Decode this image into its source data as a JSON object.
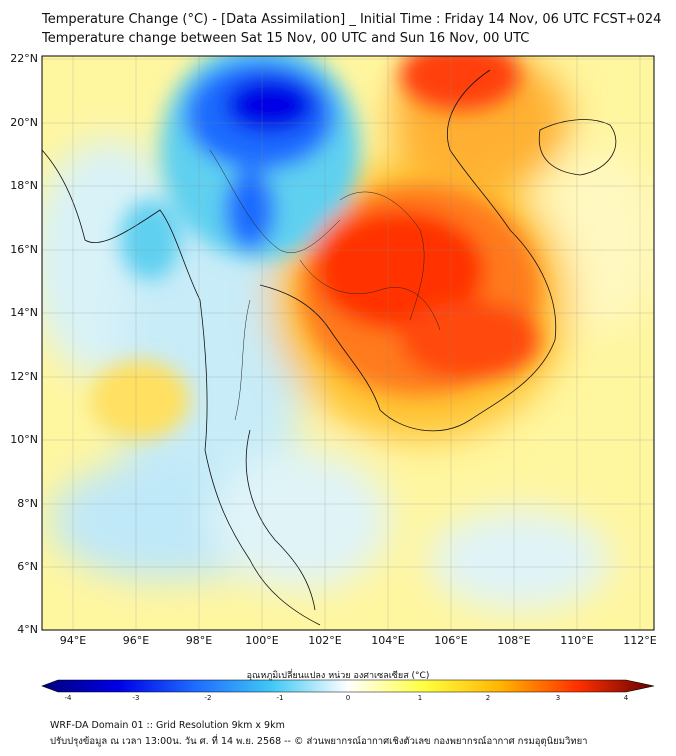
{
  "title_line1": "Temperature Change (°C) - [Data Assimilation] _ Initial Time : Friday 14 Nov, 06 UTC FCST+024",
  "title_line2": "Temperature change between Sat 15 Nov, 00 UTC and Sun 16 Nov, 00 UTC",
  "lat_labels": [
    "22°N",
    "20°N",
    "18°N",
    "16°N",
    "14°N",
    "12°N",
    "10°N",
    "8°N",
    "6°N",
    "4°N"
  ],
  "lon_labels": [
    "94°E",
    "96°E",
    "98°E",
    "100°E",
    "102°E",
    "104°E",
    "106°E",
    "108°E",
    "110°E",
    "112°E"
  ],
  "colorbar_title": "อุณหภูมิเปลี่ยนแปลง หน่วย องศาเซลเซียส (°C)",
  "colorbar_ticks": [
    "-4",
    "-3",
    "-2",
    "-1",
    "0",
    "1",
    "2",
    "3",
    "4"
  ],
  "colorbar_colors": [
    "#00007a",
    "#0000e6",
    "#1e6cff",
    "#40c8f5",
    "#ffffff",
    "#ffff40",
    "#ffb400",
    "#ff3000",
    "#640000"
  ],
  "footer_line1": "WRF-DA Domain 01 :: Grid Resolution 9km x 9km",
  "footer_line2": "ปรับปรุงข้อมูล ณ เวลา 13:00น. วัน ศ. ที่ 14 พ.ย. 2568 -- © ส่วนพยากรณ์อากาศเชิงตัวเลข กองพยากรณ์อากาศ กรมอุตุนิยมวิทยา",
  "colors": {
    "warm": "#ff5a1e",
    "cool": "#1e6cff",
    "neutral": "#fff8a0"
  }
}
